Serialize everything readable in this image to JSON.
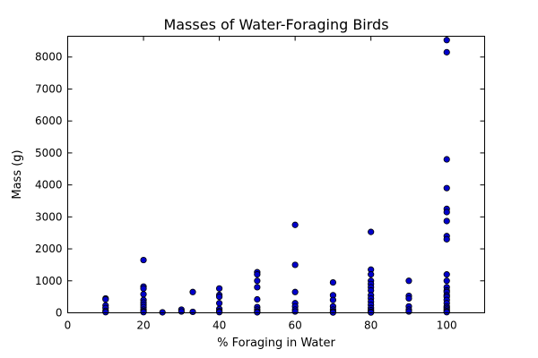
{
  "chart_data": {
    "type": "scatter",
    "title": "Masses of Water-Foraging Birds",
    "xlabel": "% Foraging in Water",
    "ylabel": "Mass (g)",
    "xlim": [
      0,
      110
    ],
    "ylim": [
      0,
      8650
    ],
    "xticks": [
      0,
      20,
      40,
      60,
      80,
      100
    ],
    "yticks": [
      0,
      1000,
      2000,
      3000,
      4000,
      5000,
      6000,
      7000,
      8000
    ],
    "grid": false,
    "marker_color": "#0000cc",
    "points": [
      [
        10,
        450
      ],
      [
        10,
        420
      ],
      [
        10,
        230
      ],
      [
        10,
        150
      ],
      [
        10,
        60
      ],
      [
        10,
        20
      ],
      [
        20,
        1650
      ],
      [
        20,
        820
      ],
      [
        20,
        760
      ],
      [
        20,
        580
      ],
      [
        20,
        400
      ],
      [
        20,
        320
      ],
      [
        20,
        250
      ],
      [
        20,
        180
      ],
      [
        20,
        100
      ],
      [
        20,
        50
      ],
      [
        20,
        20
      ],
      [
        25,
        15
      ],
      [
        30,
        100
      ],
      [
        30,
        40
      ],
      [
        33,
        650
      ],
      [
        33,
        30
      ],
      [
        40,
        760
      ],
      [
        40,
        560
      ],
      [
        40,
        500
      ],
      [
        40,
        300
      ],
      [
        40,
        120
      ],
      [
        40,
        50
      ],
      [
        40,
        20
      ],
      [
        50,
        1270
      ],
      [
        50,
        1200
      ],
      [
        50,
        1000
      ],
      [
        50,
        800
      ],
      [
        50,
        420
      ],
      [
        50,
        180
      ],
      [
        50,
        100
      ],
      [
        50,
        40
      ],
      [
        50,
        15
      ],
      [
        60,
        2750
      ],
      [
        60,
        1500
      ],
      [
        60,
        650
      ],
      [
        60,
        300
      ],
      [
        60,
        200
      ],
      [
        60,
        100
      ],
      [
        60,
        40
      ],
      [
        70,
        950
      ],
      [
        70,
        550
      ],
      [
        70,
        400
      ],
      [
        70,
        200
      ],
      [
        70,
        100
      ],
      [
        70,
        40
      ],
      [
        70,
        10
      ],
      [
        80,
        2530
      ],
      [
        80,
        1350
      ],
      [
        80,
        1200
      ],
      [
        80,
        1000
      ],
      [
        80,
        900
      ],
      [
        80,
        800
      ],
      [
        80,
        700
      ],
      [
        80,
        550
      ],
      [
        80,
        450
      ],
      [
        80,
        350
      ],
      [
        80,
        250
      ],
      [
        80,
        150
      ],
      [
        80,
        80
      ],
      [
        80,
        30
      ],
      [
        80,
        10
      ],
      [
        90,
        1000
      ],
      [
        90,
        530
      ],
      [
        90,
        450
      ],
      [
        90,
        200
      ],
      [
        90,
        100
      ],
      [
        90,
        40
      ],
      [
        100,
        8530
      ],
      [
        100,
        8150
      ],
      [
        100,
        4800
      ],
      [
        100,
        3900
      ],
      [
        100,
        3250
      ],
      [
        100,
        3150
      ],
      [
        100,
        2870
      ],
      [
        100,
        2400
      ],
      [
        100,
        2300
      ],
      [
        100,
        1200
      ],
      [
        100,
        1000
      ],
      [
        100,
        800
      ],
      [
        100,
        700
      ],
      [
        100,
        650
      ],
      [
        100,
        550
      ],
      [
        100,
        500
      ],
      [
        100,
        400
      ],
      [
        100,
        300
      ],
      [
        100,
        200
      ],
      [
        100,
        150
      ],
      [
        100,
        100
      ],
      [
        100,
        50
      ],
      [
        100,
        20
      ]
    ]
  }
}
